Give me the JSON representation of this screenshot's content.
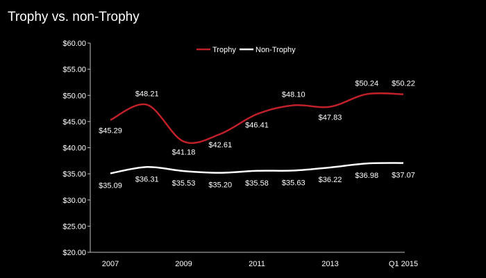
{
  "chart_data": {
    "type": "line",
    "title": "Trophy vs. non-Trophy",
    "categories": [
      "2007",
      "2008",
      "2009",
      "2010",
      "2011",
      "2012",
      "2013",
      "2014",
      "Q1 2015"
    ],
    "x_tick_labels": [
      "2007",
      "",
      "2009",
      "",
      "2011",
      "",
      "2013",
      "",
      "Q1 2015"
    ],
    "y_ticks": [
      "$20.00",
      "$25.00",
      "$30.00",
      "$35.00",
      "$40.00",
      "$45.00",
      "$50.00",
      "$55.00",
      "$60.00"
    ],
    "ylim": [
      20,
      60
    ],
    "xlabel": "",
    "ylabel": "",
    "grid": false,
    "legend_position": "top-center",
    "series": [
      {
        "name": "Trophy",
        "color": "#c0202a",
        "values": [
          45.29,
          48.21,
          41.18,
          42.61,
          46.41,
          48.1,
          47.83,
          50.24,
          50.22
        ],
        "labels": [
          "$45.29",
          "$48.21",
          "$41.18",
          "$42.61",
          "$46.41",
          "$48.10",
          "$47.83",
          "$50.24",
          "$50.22"
        ]
      },
      {
        "name": "Non-Trophy",
        "color": "#ffffff",
        "values": [
          35.09,
          36.31,
          35.53,
          35.2,
          35.58,
          35.63,
          36.22,
          36.98,
          37.07
        ],
        "labels": [
          "$35.09",
          "$36.31",
          "$35.53",
          "$35.20",
          "$35.58",
          "$35.63",
          "$36.22",
          "$36.98",
          "$37.07"
        ]
      }
    ]
  }
}
